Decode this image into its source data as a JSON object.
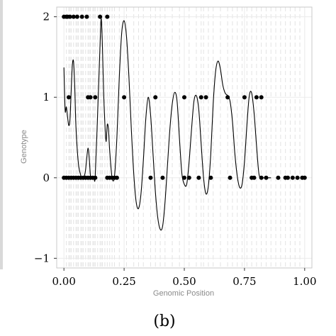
{
  "chart_data": {
    "type": "line",
    "caption": "(b)",
    "xlabel": "Genomic Position",
    "ylabel": "Genotype",
    "xlim": [
      -0.03,
      1.03
    ],
    "ylim": [
      -1.12,
      2.12
    ],
    "x_ticks": [
      0.0,
      0.25,
      0.5,
      0.75,
      1.0
    ],
    "x_tick_labels": [
      "0.00",
      "0.25",
      "0.50",
      "0.75",
      "1.00"
    ],
    "y_ticks": [
      -1,
      0,
      1,
      2
    ],
    "y_tick_labels": [
      "−1",
      "0",
      "1",
      "2"
    ],
    "grid": true,
    "colors": {
      "curve": "#000000",
      "points": "#000000",
      "grid": "#ebebeb",
      "vlines": "#e3e3e3",
      "panel_border": "#c8c8c8"
    },
    "marker_positions": [
      0.01,
      0.02,
      0.025,
      0.03,
      0.04,
      0.05,
      0.055,
      0.06,
      0.07,
      0.075,
      0.08,
      0.09,
      0.1,
      0.105,
      0.11,
      0.12,
      0.125,
      0.13,
      0.14,
      0.15,
      0.155,
      0.16,
      0.17,
      0.18,
      0.19,
      0.2,
      0.21,
      0.23,
      0.26,
      0.29,
      0.31,
      0.33,
      0.36,
      0.38,
      0.4,
      0.42,
      0.45,
      0.48,
      0.5,
      0.52,
      0.55,
      0.57,
      0.58,
      0.6,
      0.62,
      0.65,
      0.68,
      0.7,
      0.72,
      0.74,
      0.76,
      0.78,
      0.8,
      0.82,
      0.84,
      0.86,
      0.88,
      0.9,
      0.92,
      0.94,
      0.96,
      0.98
    ],
    "series": [
      {
        "kind": "points",
        "x": [
          0.0,
          0.01,
          0.015,
          0.025,
          0.04,
          0.055,
          0.075,
          0.095,
          0.15,
          0.18,
          0.02,
          0.1,
          0.11,
          0.13,
          0.25,
          0.38,
          0.5,
          0.57,
          0.59,
          0.68,
          0.75,
          0.8,
          0.82,
          0.0,
          0.01,
          0.02,
          0.03,
          0.04,
          0.05,
          0.06,
          0.07,
          0.08,
          0.09,
          0.1,
          0.11,
          0.12,
          0.13,
          0.18,
          0.19,
          0.2,
          0.21,
          0.22,
          0.36,
          0.41,
          0.5,
          0.52,
          0.56,
          0.61,
          0.69,
          0.78,
          0.79,
          0.82,
          0.84,
          0.89,
          0.92,
          0.93,
          0.95,
          0.97,
          0.99,
          1.0
        ],
        "y": [
          2,
          2,
          2,
          2,
          2,
          2,
          2,
          2,
          2,
          2,
          1,
          1,
          1,
          1,
          1,
          1,
          1,
          1,
          1,
          1,
          1,
          1,
          1,
          0,
          0,
          0,
          0,
          0,
          0,
          0,
          0,
          0,
          0,
          0,
          0,
          0,
          0,
          0,
          0,
          0,
          0,
          0,
          0,
          0,
          0,
          0,
          0,
          0,
          0,
          0,
          0,
          0,
          0,
          0,
          0,
          0,
          0,
          0,
          0,
          0
        ]
      },
      {
        "kind": "line",
        "x": [
          0.0,
          0.005,
          0.01,
          0.015,
          0.02,
          0.025,
          0.03,
          0.035,
          0.04,
          0.045,
          0.05,
          0.06,
          0.07,
          0.075,
          0.08,
          0.085,
          0.09,
          0.095,
          0.1,
          0.105,
          0.11,
          0.115,
          0.12,
          0.125,
          0.13,
          0.14,
          0.15,
          0.155,
          0.16,
          0.165,
          0.17,
          0.175,
          0.18,
          0.185,
          0.19,
          0.2,
          0.21,
          0.22,
          0.23,
          0.24,
          0.25,
          0.26,
          0.27,
          0.28,
          0.29,
          0.3,
          0.31,
          0.32,
          0.33,
          0.34,
          0.35,
          0.36,
          0.37,
          0.38,
          0.39,
          0.4,
          0.41,
          0.42,
          0.43,
          0.44,
          0.45,
          0.46,
          0.47,
          0.48,
          0.49,
          0.5,
          0.51,
          0.52,
          0.53,
          0.54,
          0.55,
          0.56,
          0.57,
          0.58,
          0.59,
          0.6,
          0.61,
          0.62,
          0.63,
          0.64,
          0.65,
          0.66,
          0.67,
          0.68,
          0.69,
          0.7,
          0.71,
          0.72,
          0.73,
          0.74,
          0.75,
          0.76,
          0.77,
          0.78,
          0.79,
          0.8,
          0.81,
          0.82,
          0.83,
          0.84,
          0.85,
          0.86
        ],
        "y": [
          1.37,
          0.84,
          0.88,
          0.76,
          0.65,
          0.72,
          1.07,
          1.4,
          1.44,
          1.12,
          0.63,
          0.18,
          0.03,
          0.0,
          -0.02,
          0.02,
          0.1,
          0.25,
          0.37,
          0.25,
          0.03,
          0.0,
          0.0,
          0.0,
          0.02,
          0.8,
          1.65,
          1.98,
          1.62,
          1.05,
          0.68,
          0.45,
          0.66,
          0.6,
          0.34,
          0.0,
          0.02,
          0.5,
          1.25,
          1.8,
          1.95,
          1.75,
          1.25,
          0.6,
          0.05,
          -0.3,
          -0.38,
          -0.2,
          0.22,
          0.73,
          1.0,
          0.78,
          0.3,
          -0.18,
          -0.5,
          -0.64,
          -0.6,
          -0.3,
          0.15,
          0.6,
          0.92,
          1.06,
          0.95,
          0.48,
          0.05,
          -0.08,
          -0.08,
          0.2,
          0.6,
          0.95,
          1.02,
          0.85,
          0.42,
          0.0,
          -0.2,
          -0.1,
          0.3,
          0.92,
          1.32,
          1.45,
          1.35,
          1.15,
          1.05,
          1.02,
          0.95,
          0.7,
          0.3,
          0.02,
          -0.12,
          -0.08,
          0.2,
          0.65,
          1.02,
          1.05,
          0.8,
          0.4,
          0.05,
          0.0,
          0.0,
          0.0,
          0.0,
          0.0
        ]
      }
    ]
  }
}
